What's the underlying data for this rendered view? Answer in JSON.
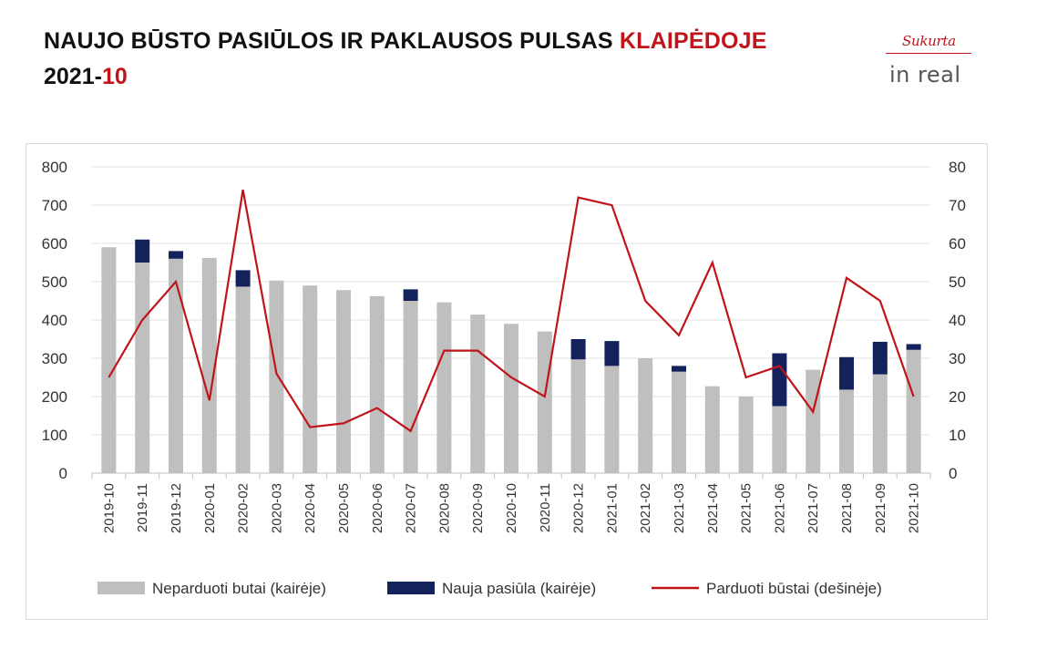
{
  "header": {
    "title_main": "NAUJO BŪSTO PASIŪLOS IR PAKLAUSOS PULSAS ",
    "title_city": "KLAIPĖDOJE",
    "period_prefix": "2021-",
    "period_month": "10"
  },
  "logo": {
    "sukurta": "Sukurta",
    "brand": "in real"
  },
  "colors": {
    "unsold": "#bfbfbf",
    "new_supply": "#14225c",
    "sold_line": "#c0141b",
    "accent": "#c0141b"
  },
  "chart_data": {
    "type": "bar",
    "categories": [
      "2019-10",
      "2019-11",
      "2019-12",
      "2020-01",
      "2020-02",
      "2020-03",
      "2020-04",
      "2020-05",
      "2020-06",
      "2020-07",
      "2020-08",
      "2020-09",
      "2020-10",
      "2020-11",
      "2020-12",
      "2021-01",
      "2021-02",
      "2021-03",
      "2021-04",
      "2021-05",
      "2021-06",
      "2021-07",
      "2021-08",
      "2021-09",
      "2021-10"
    ],
    "series": [
      {
        "name": "Neparduoti butai (kairėje)",
        "type": "bar",
        "stack": "left",
        "axis": "left",
        "values": [
          590,
          550,
          560,
          562,
          487,
          503,
          490,
          478,
          462,
          450,
          446,
          414,
          390,
          370,
          297,
          280,
          300,
          265,
          227,
          200,
          175,
          270,
          218,
          258,
          322
        ]
      },
      {
        "name": "Nauja pasiūla (kairėje)",
        "type": "bar",
        "stack": "left",
        "axis": "left",
        "values": [
          0,
          60,
          20,
          0,
          43,
          0,
          0,
          0,
          0,
          30,
          0,
          0,
          0,
          0,
          53,
          65,
          0,
          15,
          0,
          0,
          138,
          0,
          85,
          85,
          15
        ]
      },
      {
        "name": "Parduoti būstai (dešinėje)",
        "type": "line",
        "axis": "right",
        "values": [
          25,
          40,
          50,
          19,
          74,
          26,
          12,
          13,
          17,
          11,
          32,
          32,
          25,
          20,
          72,
          70,
          45,
          36,
          55,
          25,
          28,
          16,
          51,
          45,
          20
        ]
      }
    ],
    "left_axis": {
      "min": 0,
      "max": 800,
      "ticks": [
        "0",
        "100",
        "200",
        "300",
        "400",
        "500",
        "600",
        "700",
        "800"
      ]
    },
    "right_axis": {
      "min": 0,
      "max": 80,
      "ticks": [
        "0",
        "10",
        "20",
        "30",
        "40",
        "50",
        "60",
        "70",
        "80"
      ]
    },
    "grid": true,
    "legend_position": "bottom"
  }
}
